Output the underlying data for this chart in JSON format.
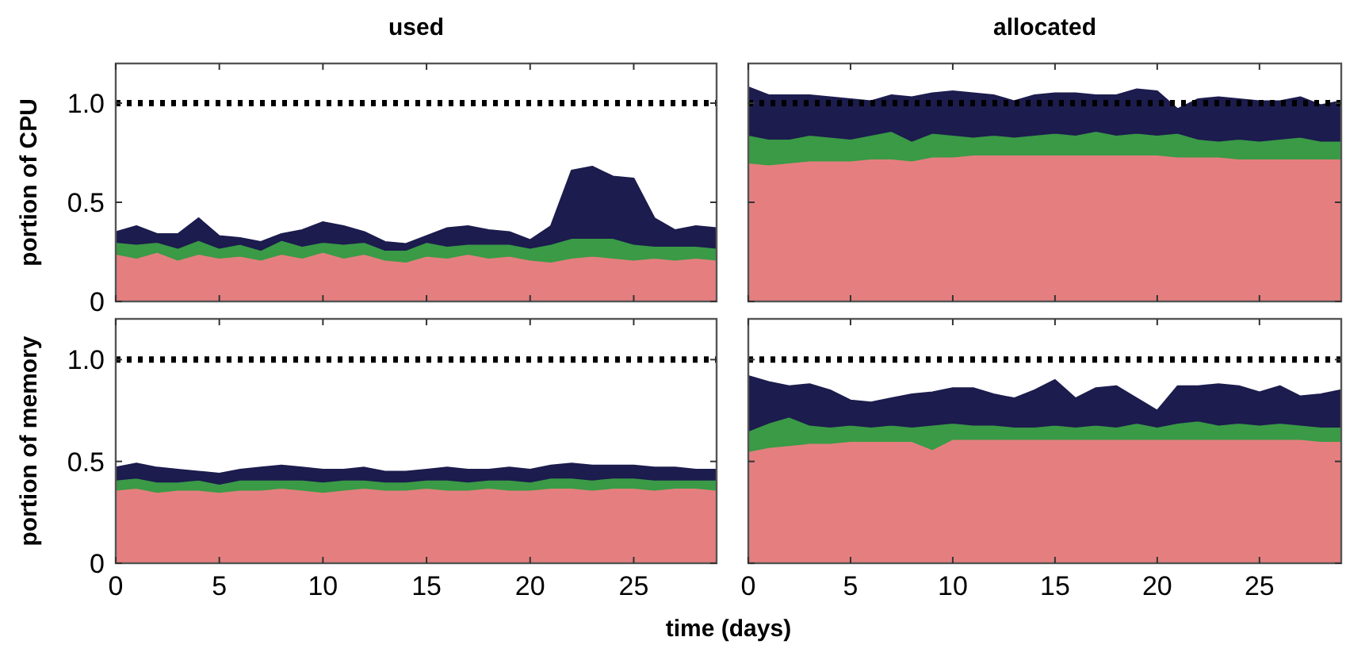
{
  "chart_data": [
    {
      "type": "area",
      "title": "used",
      "ylabel": "portion of CPU",
      "stacked": true,
      "tick_labels": "y",
      "xlim": [
        0,
        29
      ],
      "ylim": [
        0,
        1.2
      ],
      "xticks": [
        {
          "value": 0,
          "label": null
        },
        {
          "value": 5,
          "label": null
        },
        {
          "value": 10,
          "label": null
        },
        {
          "value": 15,
          "label": null
        },
        {
          "value": 20,
          "label": null
        },
        {
          "value": 25,
          "label": null
        }
      ],
      "yticks": [
        {
          "value": 0,
          "label": "0"
        },
        {
          "value": 0.5,
          "label": "0.5"
        },
        {
          "value": 1,
          "label": "1.0"
        }
      ],
      "x": [
        0,
        1,
        2,
        3,
        4,
        5,
        6,
        7,
        8,
        9,
        10,
        11,
        12,
        13,
        14,
        15,
        16,
        17,
        18,
        19,
        20,
        21,
        22,
        23,
        24,
        25,
        26,
        27,
        28,
        29
      ],
      "series": [
        {
          "color": "#e57f7f",
          "values": [
            0.24,
            0.22,
            0.25,
            0.21,
            0.24,
            0.22,
            0.23,
            0.21,
            0.24,
            0.22,
            0.25,
            0.22,
            0.24,
            0.21,
            0.2,
            0.23,
            0.22,
            0.24,
            0.22,
            0.23,
            0.21,
            0.2,
            0.22,
            0.23,
            0.22,
            0.21,
            0.22,
            0.21,
            0.22,
            0.21
          ]
        },
        {
          "color": "#3a9a46",
          "values": [
            0.06,
            0.07,
            0.05,
            0.06,
            0.07,
            0.05,
            0.06,
            0.05,
            0.07,
            0.06,
            0.05,
            0.07,
            0.06,
            0.05,
            0.06,
            0.07,
            0.06,
            0.05,
            0.07,
            0.06,
            0.06,
            0.09,
            0.1,
            0.09,
            0.1,
            0.08,
            0.06,
            0.07,
            0.06,
            0.06
          ]
        },
        {
          "color": "#1c1c4e",
          "values": [
            0.05,
            0.09,
            0.04,
            0.07,
            0.11,
            0.06,
            0.03,
            0.04,
            0.03,
            0.08,
            0.1,
            0.09,
            0.05,
            0.04,
            0.03,
            0.03,
            0.09,
            0.09,
            0.07,
            0.06,
            0.04,
            0.09,
            0.34,
            0.36,
            0.31,
            0.33,
            0.14,
            0.08,
            0.1,
            0.1
          ]
        }
      ],
      "ref_lines": [
        {
          "axis": "y",
          "value": 1,
          "color": "#000000",
          "line_style": "dotted"
        }
      ]
    },
    {
      "type": "area",
      "title": "allocated",
      "stacked": true,
      "tick_labels": false,
      "xlim": [
        0,
        29
      ],
      "ylim": [
        0,
        1.2
      ],
      "xticks": [
        {
          "value": 0,
          "label": null
        },
        {
          "value": 5,
          "label": null
        },
        {
          "value": 10,
          "label": null
        },
        {
          "value": 15,
          "label": null
        },
        {
          "value": 20,
          "label": null
        },
        {
          "value": 25,
          "label": null
        }
      ],
      "yticks": [
        {
          "value": 0,
          "label": null
        },
        {
          "value": 0.5,
          "label": null
        },
        {
          "value": 1,
          "label": null
        }
      ],
      "x": [
        0,
        1,
        2,
        3,
        4,
        5,
        6,
        7,
        8,
        9,
        10,
        11,
        12,
        13,
        14,
        15,
        16,
        17,
        18,
        19,
        20,
        21,
        22,
        23,
        24,
        25,
        26,
        27,
        28,
        29
      ],
      "series": [
        {
          "color": "#e57f7f",
          "values": [
            0.7,
            0.69,
            0.7,
            0.71,
            0.71,
            0.71,
            0.72,
            0.72,
            0.71,
            0.73,
            0.73,
            0.74,
            0.74,
            0.74,
            0.74,
            0.74,
            0.74,
            0.74,
            0.74,
            0.74,
            0.74,
            0.73,
            0.73,
            0.73,
            0.72,
            0.72,
            0.72,
            0.72,
            0.72,
            0.72
          ]
        },
        {
          "color": "#3a9a46",
          "values": [
            0.14,
            0.13,
            0.12,
            0.13,
            0.12,
            0.11,
            0.12,
            0.14,
            0.1,
            0.12,
            0.11,
            0.09,
            0.1,
            0.09,
            0.1,
            0.11,
            0.1,
            0.12,
            0.1,
            0.11,
            0.1,
            0.12,
            0.09,
            0.08,
            0.1,
            0.09,
            0.1,
            0.11,
            0.09,
            0.09
          ]
        },
        {
          "color": "#1c1c4e",
          "values": [
            0.24,
            0.22,
            0.22,
            0.2,
            0.2,
            0.2,
            0.17,
            0.18,
            0.22,
            0.2,
            0.22,
            0.22,
            0.2,
            0.18,
            0.2,
            0.2,
            0.21,
            0.18,
            0.2,
            0.22,
            0.22,
            0.12,
            0.2,
            0.22,
            0.2,
            0.2,
            0.19,
            0.2,
            0.18,
            0.2
          ]
        }
      ],
      "ref_lines": [
        {
          "axis": "y",
          "value": 1,
          "color": "#000000",
          "line_style": "dotted"
        }
      ]
    },
    {
      "type": "area",
      "ylabel": "portion of memory",
      "xlabel": "time (days)",
      "stacked": true,
      "xlim": [
        0,
        29
      ],
      "ylim": [
        0,
        1.2
      ],
      "xticks": [
        0,
        5,
        10,
        15,
        20,
        25
      ],
      "yticks": [
        {
          "value": 0,
          "label": "0"
        },
        {
          "value": 0.5,
          "label": "0.5"
        },
        {
          "value": 1,
          "label": "1.0"
        }
      ],
      "x": [
        0,
        1,
        2,
        3,
        4,
        5,
        6,
        7,
        8,
        9,
        10,
        11,
        12,
        13,
        14,
        15,
        16,
        17,
        18,
        19,
        20,
        21,
        22,
        23,
        24,
        25,
        26,
        27,
        28,
        29
      ],
      "series": [
        {
          "color": "#e57f7f",
          "values": [
            0.36,
            0.37,
            0.35,
            0.36,
            0.36,
            0.35,
            0.36,
            0.36,
            0.37,
            0.36,
            0.35,
            0.36,
            0.37,
            0.36,
            0.36,
            0.37,
            0.36,
            0.36,
            0.37,
            0.36,
            0.36,
            0.37,
            0.37,
            0.36,
            0.37,
            0.37,
            0.36,
            0.37,
            0.37,
            0.36
          ]
        },
        {
          "color": "#3a9a46",
          "values": [
            0.05,
            0.05,
            0.05,
            0.04,
            0.05,
            0.04,
            0.05,
            0.05,
            0.04,
            0.05,
            0.05,
            0.05,
            0.04,
            0.04,
            0.04,
            0.04,
            0.05,
            0.04,
            0.04,
            0.05,
            0.04,
            0.05,
            0.05,
            0.05,
            0.05,
            0.05,
            0.05,
            0.04,
            0.04,
            0.05
          ]
        },
        {
          "color": "#1c1c4e",
          "values": [
            0.06,
            0.07,
            0.07,
            0.06,
            0.04,
            0.05,
            0.05,
            0.06,
            0.07,
            0.06,
            0.06,
            0.05,
            0.06,
            0.05,
            0.05,
            0.05,
            0.06,
            0.06,
            0.05,
            0.06,
            0.06,
            0.06,
            0.07,
            0.07,
            0.06,
            0.06,
            0.06,
            0.06,
            0.05,
            0.05
          ]
        }
      ],
      "ref_lines": [
        {
          "axis": "y",
          "value": 1,
          "color": "#000000",
          "line_style": "dotted"
        }
      ]
    },
    {
      "type": "area",
      "stacked": true,
      "tick_labels": "x",
      "xlim": [
        0,
        29
      ],
      "ylim": [
        0,
        1.2
      ],
      "xticks": [
        0,
        5,
        10,
        15,
        20,
        25
      ],
      "yticks": [
        {
          "value": 0,
          "label": null
        },
        {
          "value": 0.5,
          "label": null
        },
        {
          "value": 1,
          "label": null
        }
      ],
      "x": [
        0,
        1,
        2,
        3,
        4,
        5,
        6,
        7,
        8,
        9,
        10,
        11,
        12,
        13,
        14,
        15,
        16,
        17,
        18,
        19,
        20,
        21,
        22,
        23,
        24,
        25,
        26,
        27,
        28,
        29
      ],
      "series": [
        {
          "color": "#e57f7f",
          "values": [
            0.55,
            0.57,
            0.58,
            0.59,
            0.59,
            0.6,
            0.6,
            0.6,
            0.6,
            0.56,
            0.61,
            0.61,
            0.61,
            0.61,
            0.61,
            0.61,
            0.61,
            0.61,
            0.61,
            0.61,
            0.61,
            0.61,
            0.61,
            0.61,
            0.61,
            0.61,
            0.61,
            0.61,
            0.6,
            0.6
          ]
        },
        {
          "color": "#3a9a46",
          "values": [
            0.1,
            0.12,
            0.14,
            0.09,
            0.08,
            0.08,
            0.07,
            0.08,
            0.07,
            0.12,
            0.08,
            0.07,
            0.07,
            0.06,
            0.06,
            0.07,
            0.06,
            0.07,
            0.06,
            0.08,
            0.06,
            0.08,
            0.09,
            0.07,
            0.08,
            0.07,
            0.08,
            0.07,
            0.07,
            0.07
          ]
        },
        {
          "color": "#1c1c4e",
          "values": [
            0.27,
            0.2,
            0.15,
            0.2,
            0.18,
            0.12,
            0.12,
            0.13,
            0.16,
            0.16,
            0.17,
            0.18,
            0.15,
            0.14,
            0.18,
            0.22,
            0.14,
            0.18,
            0.2,
            0.12,
            0.08,
            0.18,
            0.17,
            0.2,
            0.18,
            0.16,
            0.18,
            0.14,
            0.16,
            0.18
          ]
        }
      ],
      "ref_lines": [
        {
          "axis": "y",
          "value": 1,
          "color": "#000000",
          "line_style": "dotted"
        }
      ]
    }
  ]
}
